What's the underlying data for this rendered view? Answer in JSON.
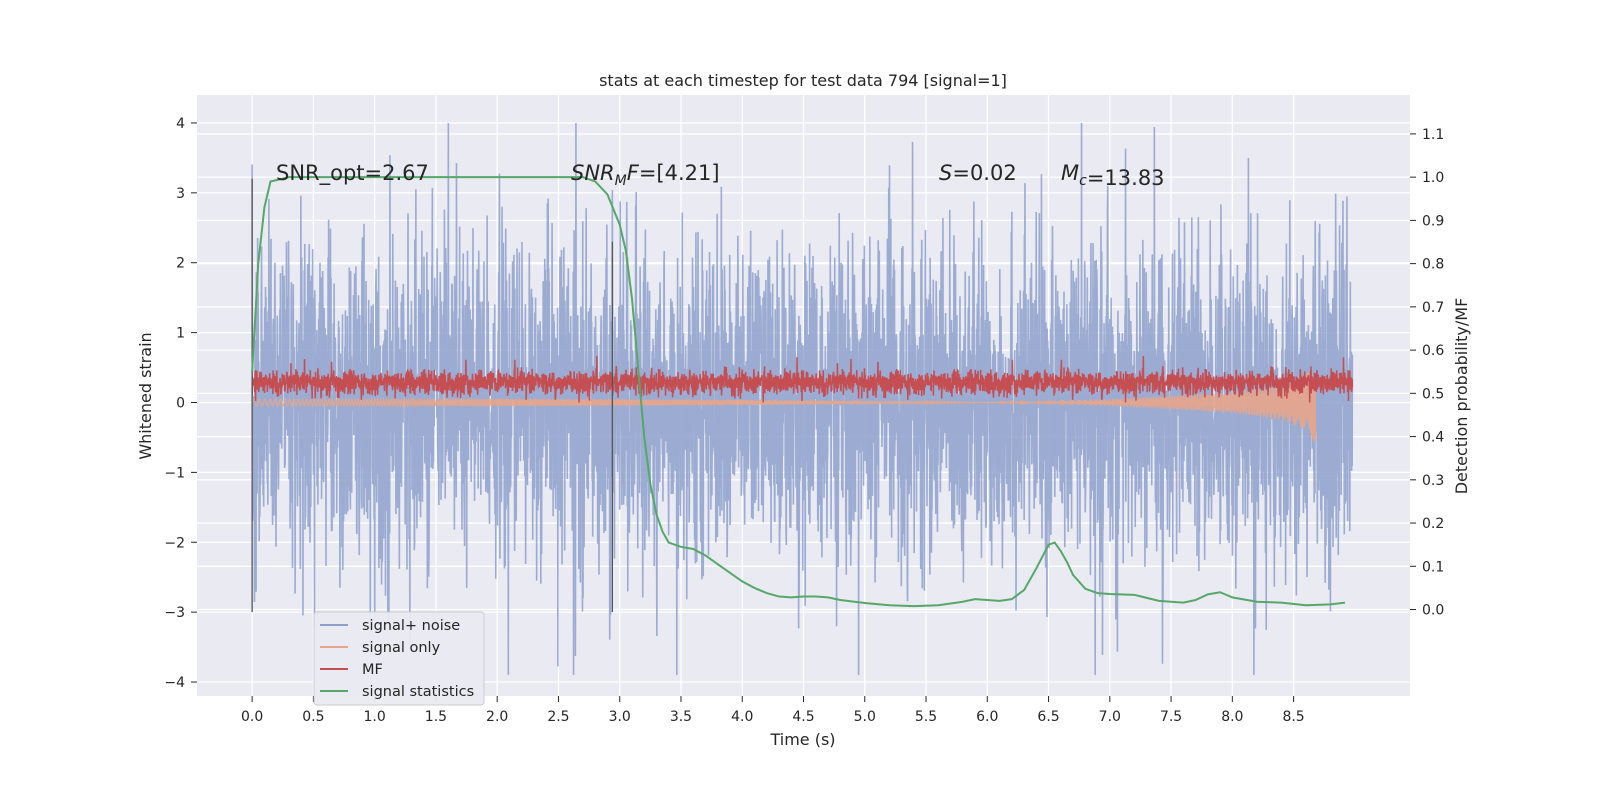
{
  "chart_data": {
    "type": "line",
    "title": "stats at each timestep for test data 794 [signal=1]",
    "xlabel": "Time (s)",
    "ylabel": "Whitened strain",
    "ylabel_right": "Detection probability/MF",
    "xlim": [
      -0.45,
      9.45
    ],
    "ylim": [
      -4.2,
      4.4
    ],
    "ylim_right": [
      -0.2,
      1.19
    ],
    "x_ticks": [
      "0.0",
      "0.5",
      "1.0",
      "1.5",
      "2.0",
      "2.5",
      "3.0",
      "3.5",
      "4.0",
      "4.5",
      "5.0",
      "5.5",
      "6.0",
      "6.5",
      "7.0",
      "7.5",
      "8.0",
      "8.5"
    ],
    "y_ticks": [
      "4",
      "3",
      "2",
      "1",
      "0",
      "−1",
      "−2",
      "−3",
      "−4"
    ],
    "y_right_ticks": [
      "1.1",
      "1.0",
      "0.9",
      "0.8",
      "0.7",
      "0.6",
      "0.5",
      "0.4",
      "0.3",
      "0.2",
      "0.1",
      "0.0"
    ],
    "annotations": [
      {
        "name": "snr-opt",
        "prefix": "SNR_opt",
        "value": "=2.67"
      },
      {
        "name": "snr-mf",
        "prefix": "SNR",
        "sub": "M",
        "suffix": "F",
        "value": "=[4.21]"
      },
      {
        "name": "s-value",
        "prefix": "S",
        "value": "=0.02"
      },
      {
        "name": "mc-value",
        "prefix": "M",
        "sub": "c",
        "value": "=13.83"
      }
    ],
    "legend": {
      "position": "lower-left",
      "entries": [
        {
          "label": "signal+ noise",
          "color": "#8da0cb"
        },
        {
          "label": "signal only",
          "color": "#e8a58a"
        },
        {
          "label": "MF",
          "color": "#c44e52"
        },
        {
          "label": "signal statistics",
          "color": "#55a868"
        }
      ]
    },
    "series": [
      {
        "name": "signal+ noise",
        "axis": "left",
        "color": "#8da0cb",
        "x_range": [
          0.0,
          8.98
        ],
        "mean": 0.0,
        "std": 1.1,
        "min": -3.9,
        "max": 4.0
      },
      {
        "name": "signal only",
        "axis": "left",
        "color": "#e8a58a",
        "x": [
          0.0,
          2.0,
          4.0,
          6.0,
          7.0,
          8.0,
          8.4,
          8.6,
          8.68
        ],
        "y": [
          0.05,
          0.05,
          0.04,
          0.0,
          -0.05,
          -0.15,
          -0.25,
          -0.4,
          -0.58
        ]
      },
      {
        "name": "MF",
        "axis": "left",
        "color": "#c44e52",
        "x_range": [
          0.0,
          8.98
        ],
        "mean": 0.3,
        "min": 0.0,
        "max": 0.95
      },
      {
        "name": "signal statistics",
        "axis": "right",
        "color": "#55a868",
        "x": [
          0.0,
          0.05,
          0.1,
          0.15,
          0.3,
          1.0,
          2.0,
          2.5,
          2.7,
          2.8,
          2.9,
          3.0,
          3.05,
          3.1,
          3.15,
          3.2,
          3.25,
          3.3,
          3.35,
          3.4,
          3.5,
          3.6,
          3.7,
          3.8,
          3.9,
          4.0,
          4.1,
          4.2,
          4.3,
          4.4,
          4.5,
          4.6,
          4.7,
          4.8,
          5.0,
          5.2,
          5.4,
          5.6,
          5.8,
          5.9,
          6.0,
          6.1,
          6.2,
          6.3,
          6.4,
          6.5,
          6.55,
          6.6,
          6.65,
          6.7,
          6.8,
          6.9,
          7.0,
          7.2,
          7.4,
          7.6,
          7.7,
          7.8,
          7.9,
          8.0,
          8.2,
          8.4,
          8.6,
          8.8,
          8.92
        ],
        "y": [
          0.55,
          0.8,
          0.93,
          0.99,
          1.0,
          1.0,
          1.0,
          1.0,
          1.0,
          0.99,
          0.96,
          0.89,
          0.83,
          0.72,
          0.56,
          0.4,
          0.29,
          0.22,
          0.18,
          0.155,
          0.145,
          0.14,
          0.125,
          0.105,
          0.085,
          0.065,
          0.05,
          0.038,
          0.03,
          0.028,
          0.03,
          0.03,
          0.028,
          0.022,
          0.015,
          0.01,
          0.008,
          0.01,
          0.018,
          0.024,
          0.022,
          0.02,
          0.024,
          0.045,
          0.095,
          0.15,
          0.155,
          0.135,
          0.11,
          0.08,
          0.048,
          0.038,
          0.036,
          0.034,
          0.02,
          0.016,
          0.022,
          0.035,
          0.04,
          0.028,
          0.018,
          0.016,
          0.01,
          0.012,
          0.016
        ]
      }
    ],
    "vertical_markers": [
      {
        "x": 0.0,
        "y_range": [
          -3.0,
          3.2
        ]
      },
      {
        "x": 2.94,
        "y_range": [
          -3.0,
          2.3
        ]
      }
    ]
  }
}
